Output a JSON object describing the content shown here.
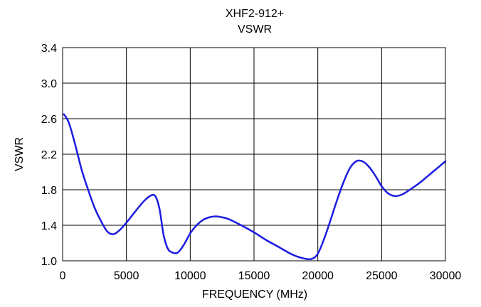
{
  "chart_data": {
    "type": "line",
    "title": "XHF2-912+",
    "subtitle": "VSWR",
    "xlabel": "FREQUENCY (MHz)",
    "ylabel": "VSWR",
    "xlim": [
      0,
      30000
    ],
    "ylim": [
      1.0,
      3.4
    ],
    "xticks": [
      0,
      5000,
      10000,
      15000,
      20000,
      25000,
      30000
    ],
    "yticks": [
      1.0,
      1.4,
      1.8,
      2.2,
      2.6,
      3.0,
      3.4
    ],
    "xtick_labels": [
      "0",
      "5000",
      "10000",
      "15000",
      "20000",
      "25000",
      "30000"
    ],
    "ytick_labels": [
      "1.0",
      "1.4",
      "1.8",
      "2.2",
      "2.6",
      "3.0",
      "3.4"
    ],
    "grid": true,
    "line_color": "#1c1ce0",
    "series": [
      {
        "x": [
          100,
          500,
          1000,
          1500,
          2000,
          2500,
          3000,
          3500,
          4000,
          4500,
          5000,
          5500,
          6000,
          6500,
          7000,
          7300,
          7600,
          7900,
          8200,
          8500,
          9000,
          9500,
          10000,
          10500,
          11000,
          11500,
          12000,
          12500,
          13000,
          14000,
          15000,
          16000,
          17000,
          18000,
          18800,
          19500,
          20000,
          20500,
          21000,
          21500,
          22000,
          22500,
          23000,
          23500,
          24000,
          24500,
          25000,
          25500,
          26000,
          26500,
          27000,
          28000,
          29000,
          30000
        ],
        "y": [
          2.65,
          2.55,
          2.3,
          2.02,
          1.8,
          1.6,
          1.45,
          1.33,
          1.3,
          1.35,
          1.43,
          1.52,
          1.61,
          1.69,
          1.74,
          1.72,
          1.58,
          1.3,
          1.15,
          1.1,
          1.09,
          1.18,
          1.31,
          1.4,
          1.46,
          1.49,
          1.5,
          1.49,
          1.47,
          1.4,
          1.32,
          1.23,
          1.15,
          1.07,
          1.03,
          1.02,
          1.08,
          1.25,
          1.46,
          1.68,
          1.88,
          2.04,
          2.12,
          2.12,
          2.06,
          1.96,
          1.84,
          1.76,
          1.73,
          1.74,
          1.78,
          1.88,
          2.0,
          2.12
        ]
      }
    ]
  }
}
